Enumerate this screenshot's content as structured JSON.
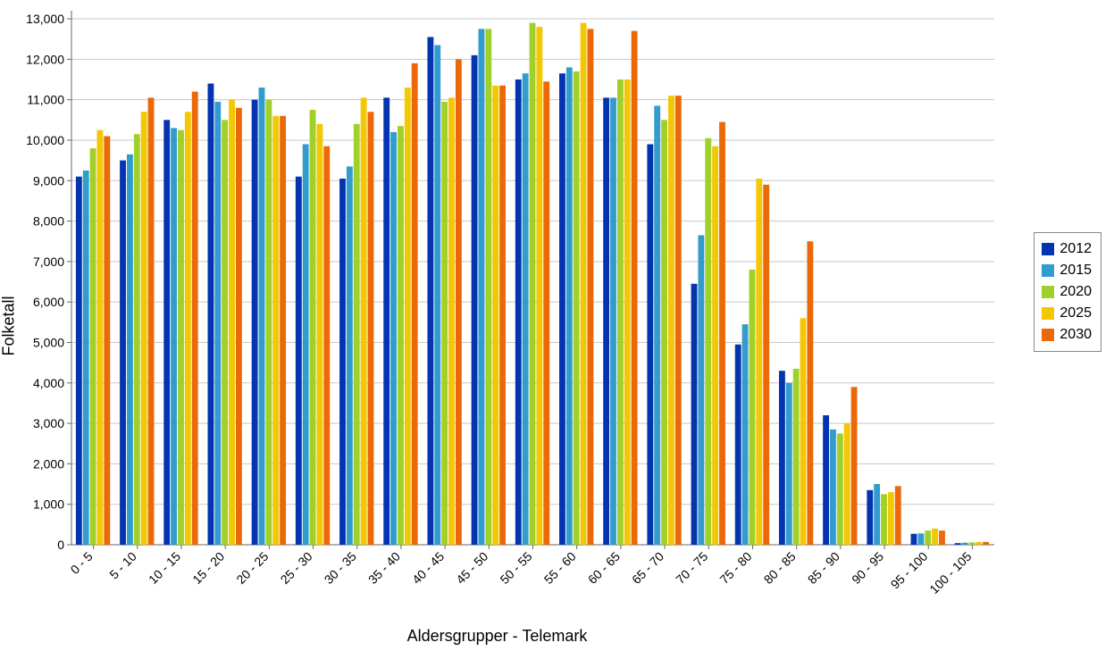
{
  "chart": {
    "type": "bar",
    "xlabel": "Aldersgrupper - Telemark",
    "ylabel": "Folketall",
    "label_fontsize": 18,
    "tick_fontsize": 14,
    "background_color": "#ffffff",
    "grid_color": "#c8c8c8",
    "axis_color": "#666666",
    "ylim": [
      0,
      13200
    ],
    "ytick_step": 1000,
    "yticks": [
      0,
      1000,
      2000,
      3000,
      4000,
      5000,
      6000,
      7000,
      8000,
      9000,
      10000,
      11000,
      12000,
      13000
    ],
    "ytick_labels": [
      "0",
      "1,000",
      "2,000",
      "3,000",
      "4,000",
      "5,000",
      "6,000",
      "7,000",
      "8,000",
      "9,000",
      "10,000",
      "11,000",
      "12,000",
      "13,000"
    ],
    "categories": [
      "0 - 5",
      "5 - 10",
      "10 - 15",
      "15 - 20",
      "20 - 25",
      "25 - 30",
      "30 - 35",
      "35 - 40",
      "40 - 45",
      "45 - 50",
      "50 - 55",
      "55 - 60",
      "60 - 65",
      "65 - 70",
      "70 - 75",
      "75 - 80",
      "80 - 85",
      "85 - 90",
      "90 - 95",
      "95 - 100",
      "100 - 105"
    ],
    "series": [
      {
        "name": "2012",
        "color": "#0534b0",
        "values": [
          9100,
          9500,
          10500,
          11400,
          11000,
          9100,
          9050,
          11050,
          12550,
          12100,
          11500,
          11650,
          11050,
          9900,
          6450,
          4950,
          4300,
          3200,
          1350,
          270,
          40
        ]
      },
      {
        "name": "2015",
        "color": "#329cce",
        "values": [
          9250,
          9650,
          10300,
          10950,
          11300,
          9900,
          9350,
          10200,
          12350,
          12750,
          11650,
          11800,
          11050,
          10850,
          7650,
          5450,
          4000,
          2850,
          1500,
          280,
          50
        ]
      },
      {
        "name": "2020",
        "color": "#a2d02a",
        "values": [
          9800,
          10150,
          10250,
          10500,
          11000,
          10750,
          10400,
          10350,
          10950,
          12750,
          12900,
          11700,
          11500,
          10500,
          10050,
          6800,
          4350,
          2750,
          1250,
          350,
          60
        ]
      },
      {
        "name": "2025",
        "color": "#f3c702",
        "values": [
          10250,
          10700,
          10700,
          11000,
          10600,
          10400,
          11050,
          11300,
          11050,
          11350,
          12800,
          12900,
          11500,
          11100,
          9850,
          9050,
          5600,
          3000,
          1300,
          400,
          70
        ]
      },
      {
        "name": "2030",
        "color": "#ec6909",
        "values": [
          10100,
          11050,
          11200,
          10800,
          10600,
          9850,
          10700,
          11900,
          12000,
          11350,
          11450,
          12750,
          12700,
          11100,
          10450,
          8900,
          7500,
          3900,
          1450,
          350,
          70
        ]
      }
    ],
    "group_gap_ratio": 0.2,
    "legend_position": "right-middle"
  }
}
